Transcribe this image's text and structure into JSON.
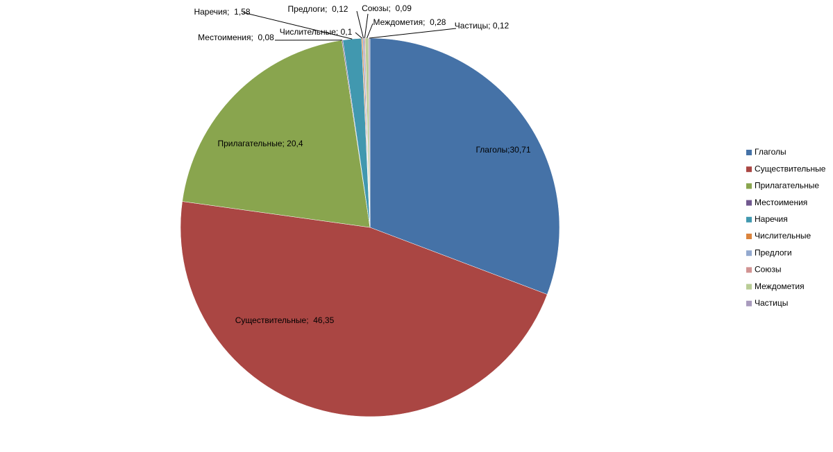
{
  "chart_data": {
    "type": "pie",
    "categories": [
      "Глаголы",
      "Существительные",
      "Прилагательные",
      "Местоимения",
      "Наречия",
      "Числительные",
      "Предлоги",
      "Союзы",
      "Междометия",
      "Частицы"
    ],
    "values": [
      30.71,
      46.35,
      20.4,
      0.08,
      1.58,
      0.1,
      0.12,
      0.09,
      0.28,
      0.12
    ],
    "value_labels": [
      "Глаголы;30,71",
      "Существительные;  46,35",
      "Прилагательные; 20,4",
      "Местоимения;  0,08",
      "Наречия;  1,58",
      "Числительные; 0,1",
      "Предлоги;  0,12",
      "Союзы;  0,09",
      "Междометия;  0,28",
      "Частицы; 0,12"
    ],
    "colors": [
      "#4572A7",
      "#AA4643",
      "#89A54E",
      "#71588F",
      "#4198AF",
      "#DB843D",
      "#93A9CF",
      "#D19392",
      "#B9CD96",
      "#A99BBD"
    ],
    "legend": "right"
  }
}
